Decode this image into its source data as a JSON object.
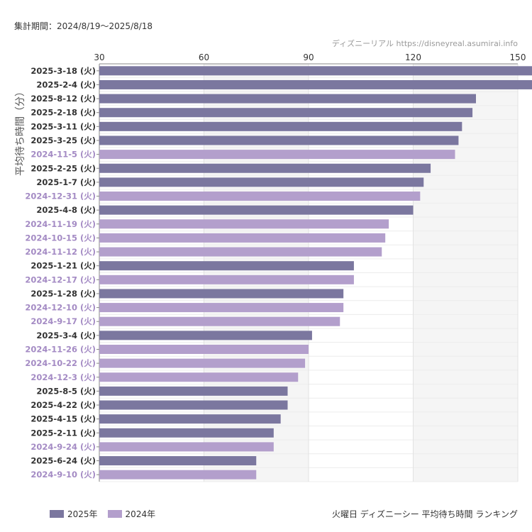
{
  "header": {
    "period": "集計期間：2024/8/19〜2025/8/18",
    "watermark": "ディズニーリアル https://disneyreal.asumirai.info"
  },
  "footer": {
    "title": "火曜日 ディズニーシー 平均待ち時間 ランキング"
  },
  "colors": {
    "year2025": "#7b779f",
    "year2024": "#b39fcc",
    "plot_band": "#f5f5f5",
    "grid": "#e2e2e2"
  },
  "chart_data": {
    "type": "bar",
    "orientation": "horizontal",
    "ylabel": "平均待ち時間（分）",
    "xlim": [
      30,
      150
    ],
    "xticks": [
      30,
      60,
      90,
      120,
      150
    ],
    "legend": [
      {
        "name": "2025年",
        "color": "#7b779f"
      },
      {
        "name": "2024年",
        "color": "#b39fcc"
      }
    ],
    "categories": [
      "2025-3-18 (火)",
      "2025-2-4 (火)",
      "2025-8-12 (火)",
      "2025-2-18 (火)",
      "2025-3-11 (火)",
      "2025-3-25 (火)",
      "2024-11-5 (火)",
      "2025-2-25 (火)",
      "2025-1-7 (火)",
      "2024-12-31 (火)",
      "2025-4-8 (火)",
      "2024-11-19 (火)",
      "2024-10-15 (火)",
      "2024-11-12 (火)",
      "2025-1-21 (火)",
      "2024-12-17 (火)",
      "2025-1-28 (火)",
      "2024-12-10 (火)",
      "2024-9-17 (火)",
      "2025-3-4 (火)",
      "2024-11-26 (火)",
      "2024-10-22 (火)",
      "2024-12-3 (火)",
      "2025-8-5 (火)",
      "2025-4-22 (火)",
      "2025-4-15 (火)",
      "2025-2-11 (火)",
      "2024-9-24 (火)",
      "2025-6-24 (火)",
      "2024-9-10 (火)"
    ],
    "values": [
      158,
      158,
      138,
      137,
      134,
      133,
      132,
      125,
      123,
      122,
      120,
      113,
      112,
      111,
      103,
      103,
      100,
      100,
      99,
      91,
      90,
      89,
      87,
      84,
      84,
      82,
      80,
      80,
      75,
      75
    ],
    "year": [
      "2025",
      "2025",
      "2025",
      "2025",
      "2025",
      "2025",
      "2024",
      "2025",
      "2025",
      "2024",
      "2025",
      "2024",
      "2024",
      "2024",
      "2025",
      "2024",
      "2025",
      "2024",
      "2024",
      "2025",
      "2024",
      "2024",
      "2024",
      "2025",
      "2025",
      "2025",
      "2025",
      "2024",
      "2025",
      "2024"
    ]
  }
}
